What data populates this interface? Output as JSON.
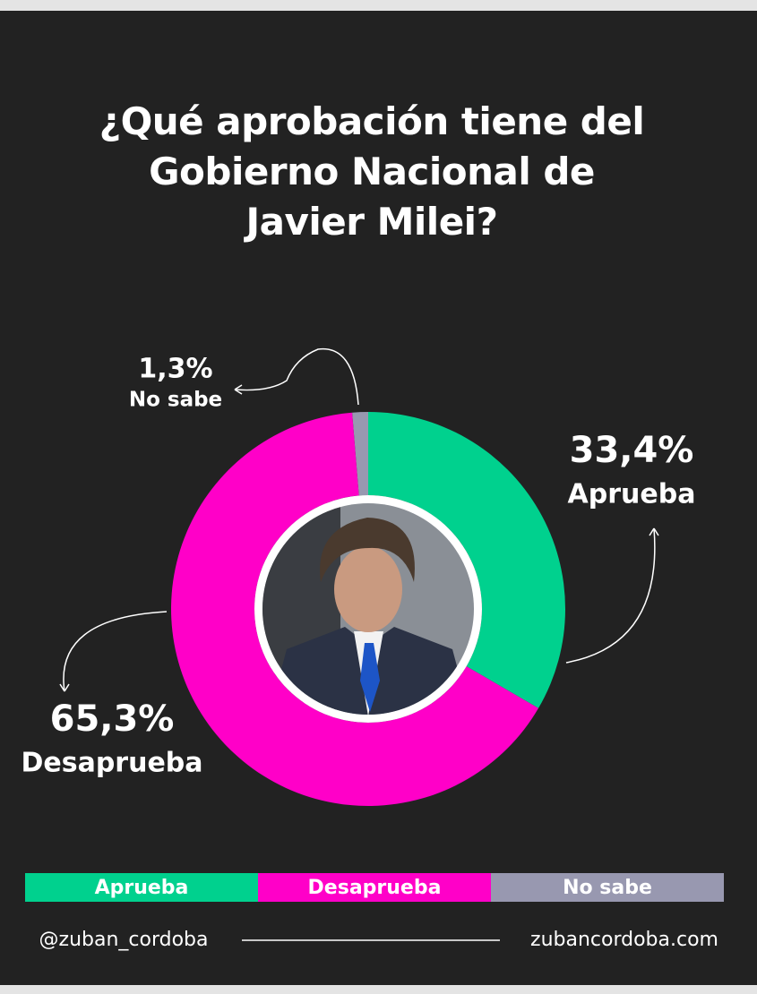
{
  "chart_data": {
    "type": "donut",
    "title": "¿Qué aprobación tiene del Gobierno Nacional de Javier Milei?",
    "categories": [
      "Aprueba",
      "Desaprueba",
      "No sabe"
    ],
    "values": [
      33.4,
      65.3,
      1.3
    ],
    "value_labels": [
      "33,4%",
      "65,3%",
      "1,3%"
    ],
    "colors": [
      "#00d18e",
      "#ff00c8",
      "#9898b0"
    ]
  },
  "footer": {
    "left": "@zuban_cordoba",
    "right": "zubancordoba.com"
  }
}
